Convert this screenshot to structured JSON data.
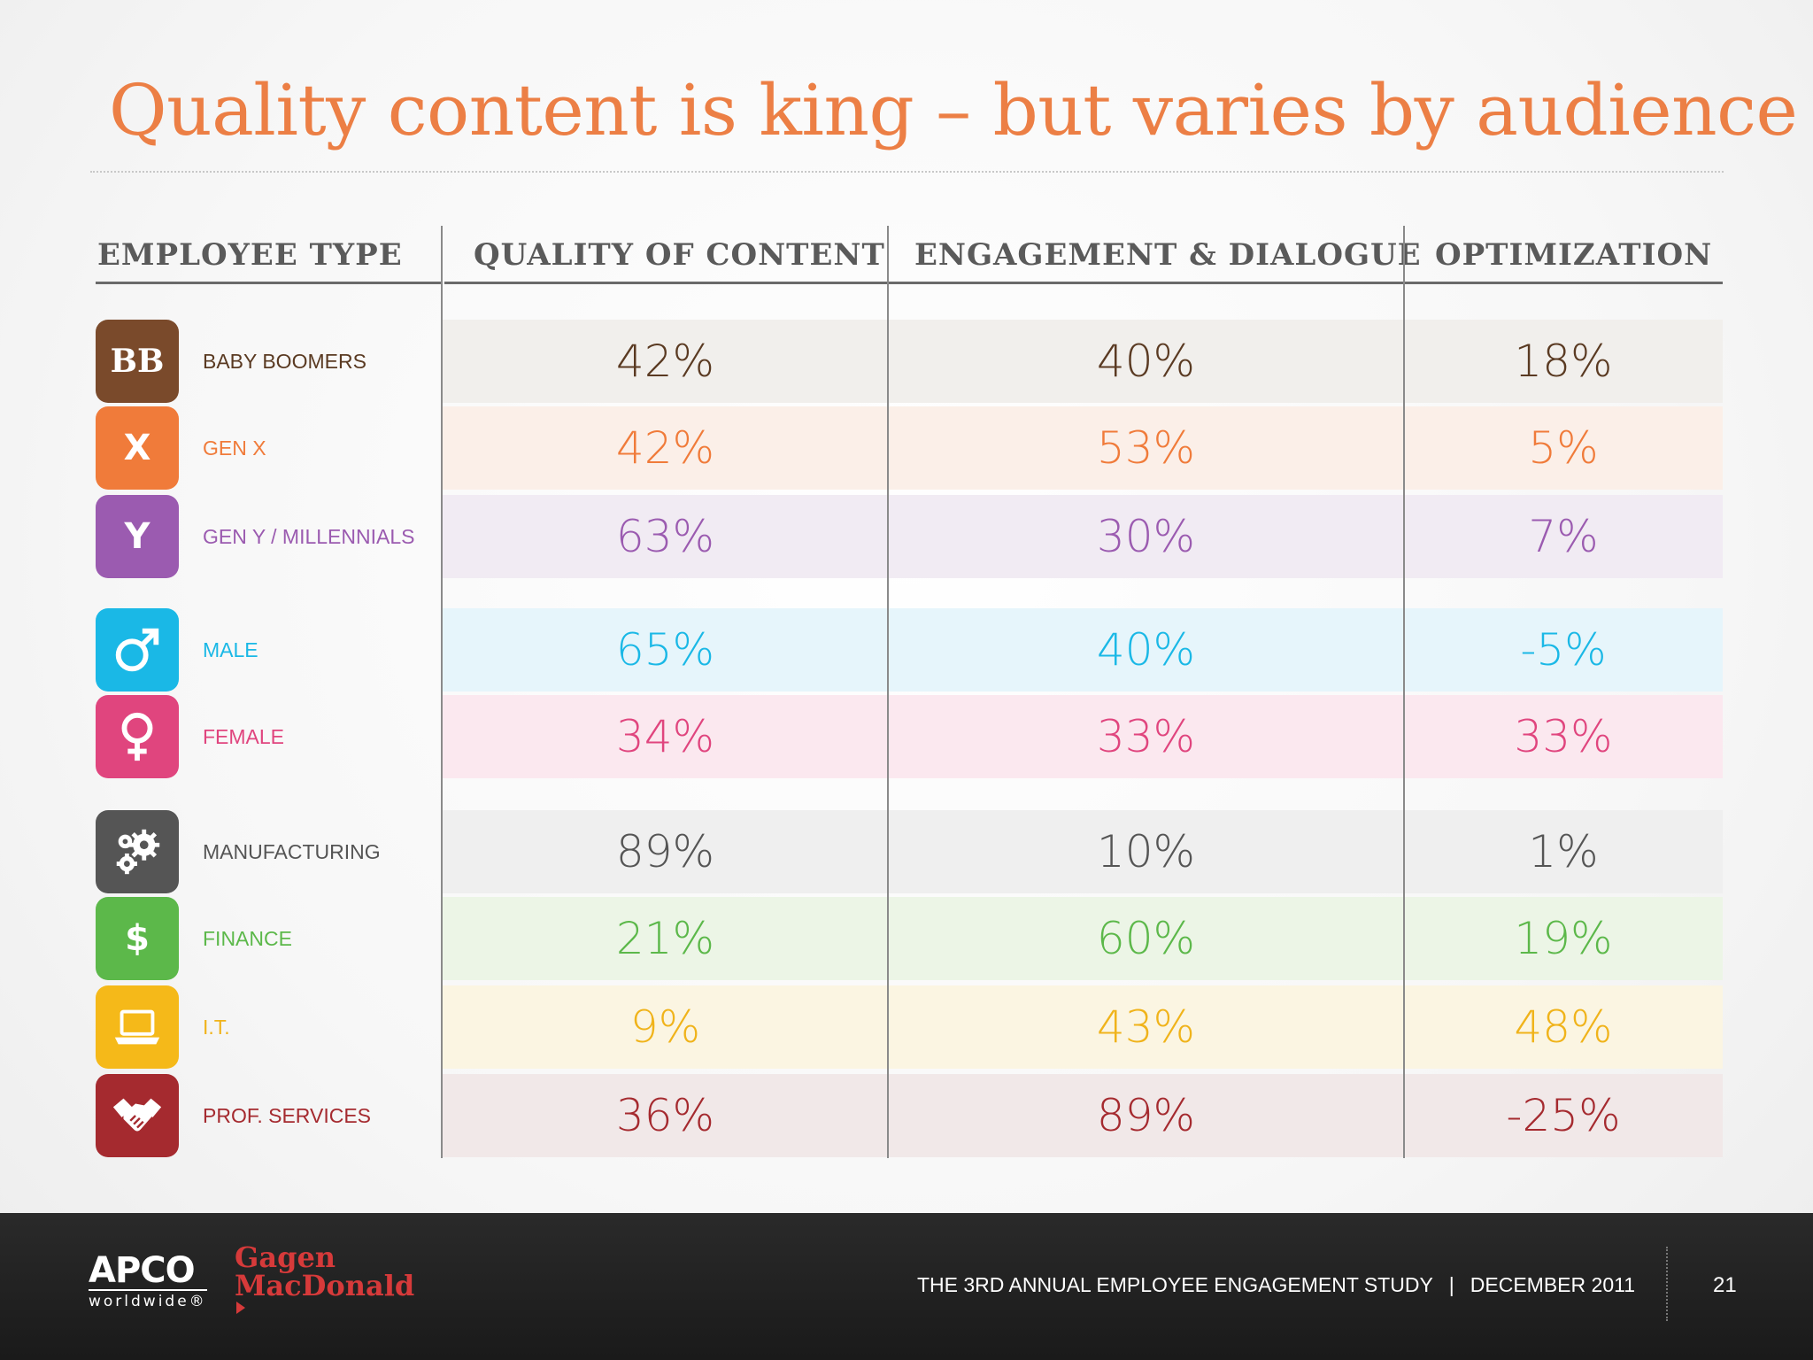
{
  "title": "Quality content is king – but varies by audience",
  "columns": [
    "EMPLOYEE TYPE",
    "QUALITY OF CONTENT",
    "ENGAGEMENT & DIALOGUE",
    "OPTIMIZATION"
  ],
  "rows": [
    {
      "badge": "BB",
      "icon": "baby-boomers-badge",
      "label": "BABY BOOMERS",
      "quality": "42%",
      "engagement": "40%",
      "optimization": "18%",
      "color": "#7a4a2b",
      "text_color": "#5a3a22",
      "bg": "#f1efec"
    },
    {
      "badge": "X",
      "icon": "gen-x-badge",
      "label": "GEN X",
      "quality": "42%",
      "engagement": "53%",
      "optimization": "5%",
      "color": "#f07b3a",
      "text_color": "#f07b3a",
      "bg": "#fbefe8"
    },
    {
      "badge": "Y",
      "icon": "gen-y-badge",
      "label": "GEN Y / MILLENNIALS",
      "quality": "63%",
      "engagement": "30%",
      "optimization": "7%",
      "color": "#9b5bb0",
      "text_color": "#9b5bb0",
      "bg": "#f1ebf3"
    },
    {
      "badge": "",
      "icon": "male-symbol-icon",
      "label": "MALE",
      "quality": "65%",
      "engagement": "40%",
      "optimization": "-5%",
      "color": "#1ab8e6",
      "text_color": "#1ab8e6",
      "bg": "#e6f5fb"
    },
    {
      "badge": "",
      "icon": "female-symbol-icon",
      "label": "FEMALE",
      "quality": "34%",
      "engagement": "33%",
      "optimization": "33%",
      "color": "#e0457e",
      "text_color": "#e0457e",
      "bg": "#fbe8ef"
    },
    {
      "badge": "",
      "icon": "gears-icon",
      "label": "MANUFACTURING",
      "quality": "89%",
      "engagement": "10%",
      "optimization": "1%",
      "color": "#555555",
      "text_color": "#555555",
      "bg": "#efefef"
    },
    {
      "badge": "$",
      "icon": "dollar-icon",
      "label": "FINANCE",
      "quality": "21%",
      "engagement": "60%",
      "optimization": "19%",
      "color": "#5cb84a",
      "text_color": "#5cb84a",
      "bg": "#ecf5e6"
    },
    {
      "badge": "",
      "icon": "laptop-icon",
      "label": "I.T.",
      "quality": "9%",
      "engagement": "43%",
      "optimization": "48%",
      "color": "#f5b919",
      "text_color": "#f0b31a",
      "bg": "#fbf5e2"
    },
    {
      "badge": "",
      "icon": "handshake-icon",
      "label": "PROF. SERVICES",
      "quality": "36%",
      "engagement": "89%",
      "optimization": "-25%",
      "color": "#a52a2f",
      "text_color": "#a52a2f",
      "bg": "#f1e8e8"
    }
  ],
  "footer": {
    "apco_name": "APCO",
    "apco_sub": "worldwide®",
    "gagen_line1": "Gagen",
    "gagen_line2": "MacDonald",
    "study": "THE 3RD ANNUAL EMPLOYEE ENGAGEMENT STUDY",
    "separator": "|",
    "date": "DECEMBER  2011",
    "page": "21"
  }
}
